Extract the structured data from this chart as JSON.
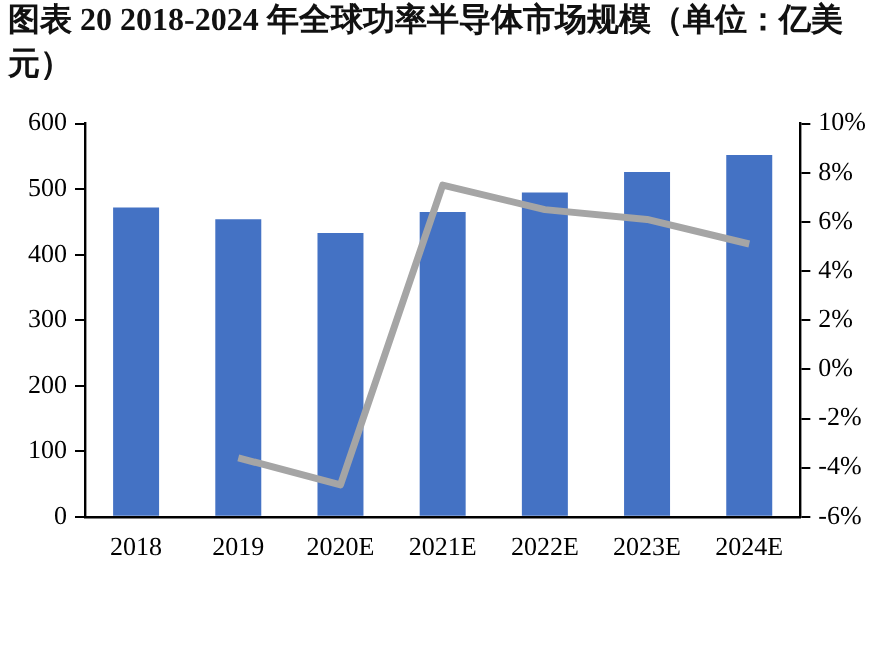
{
  "chart_data": {
    "type": "bar",
    "title": "图表 20 2018-2024 年全球功率半导体市场规模（单位：亿美元）",
    "categories": [
      "2018",
      "2019",
      "2020E",
      "2021E",
      "2022E",
      "2023E",
      "2024E"
    ],
    "series": [
      {
        "color": "#4472c4",
        "values": [
          472,
          454,
          433,
          465,
          495,
          526,
          552
        ]
      },
      {
        "type": "line",
        "axis": "y2",
        "color": "#a5a5a5",
        "values": [
          null,
          -3.6,
          -4.7,
          7.5,
          6.5,
          6.1,
          5.1
        ]
      }
    ],
    "ylim": [
      0,
      600
    ],
    "yticks": [
      0,
      100,
      200,
      300,
      400,
      500,
      600
    ],
    "y2lim": [
      -6,
      10
    ],
    "y2ticks": [
      {
        "value": -6,
        "label": "-6%"
      },
      {
        "value": -4,
        "label": "-4%"
      },
      {
        "value": -2,
        "label": "-2%"
      },
      {
        "value": 0,
        "label": "0%"
      },
      {
        "value": 2,
        "label": "2%"
      },
      {
        "value": 4,
        "label": "4%"
      },
      {
        "value": 6,
        "label": "6%"
      },
      {
        "value": 8,
        "label": "8%"
      },
      {
        "value": 10,
        "label": "10%"
      }
    ],
    "grid": false,
    "legend": false,
    "marker": "none"
  }
}
